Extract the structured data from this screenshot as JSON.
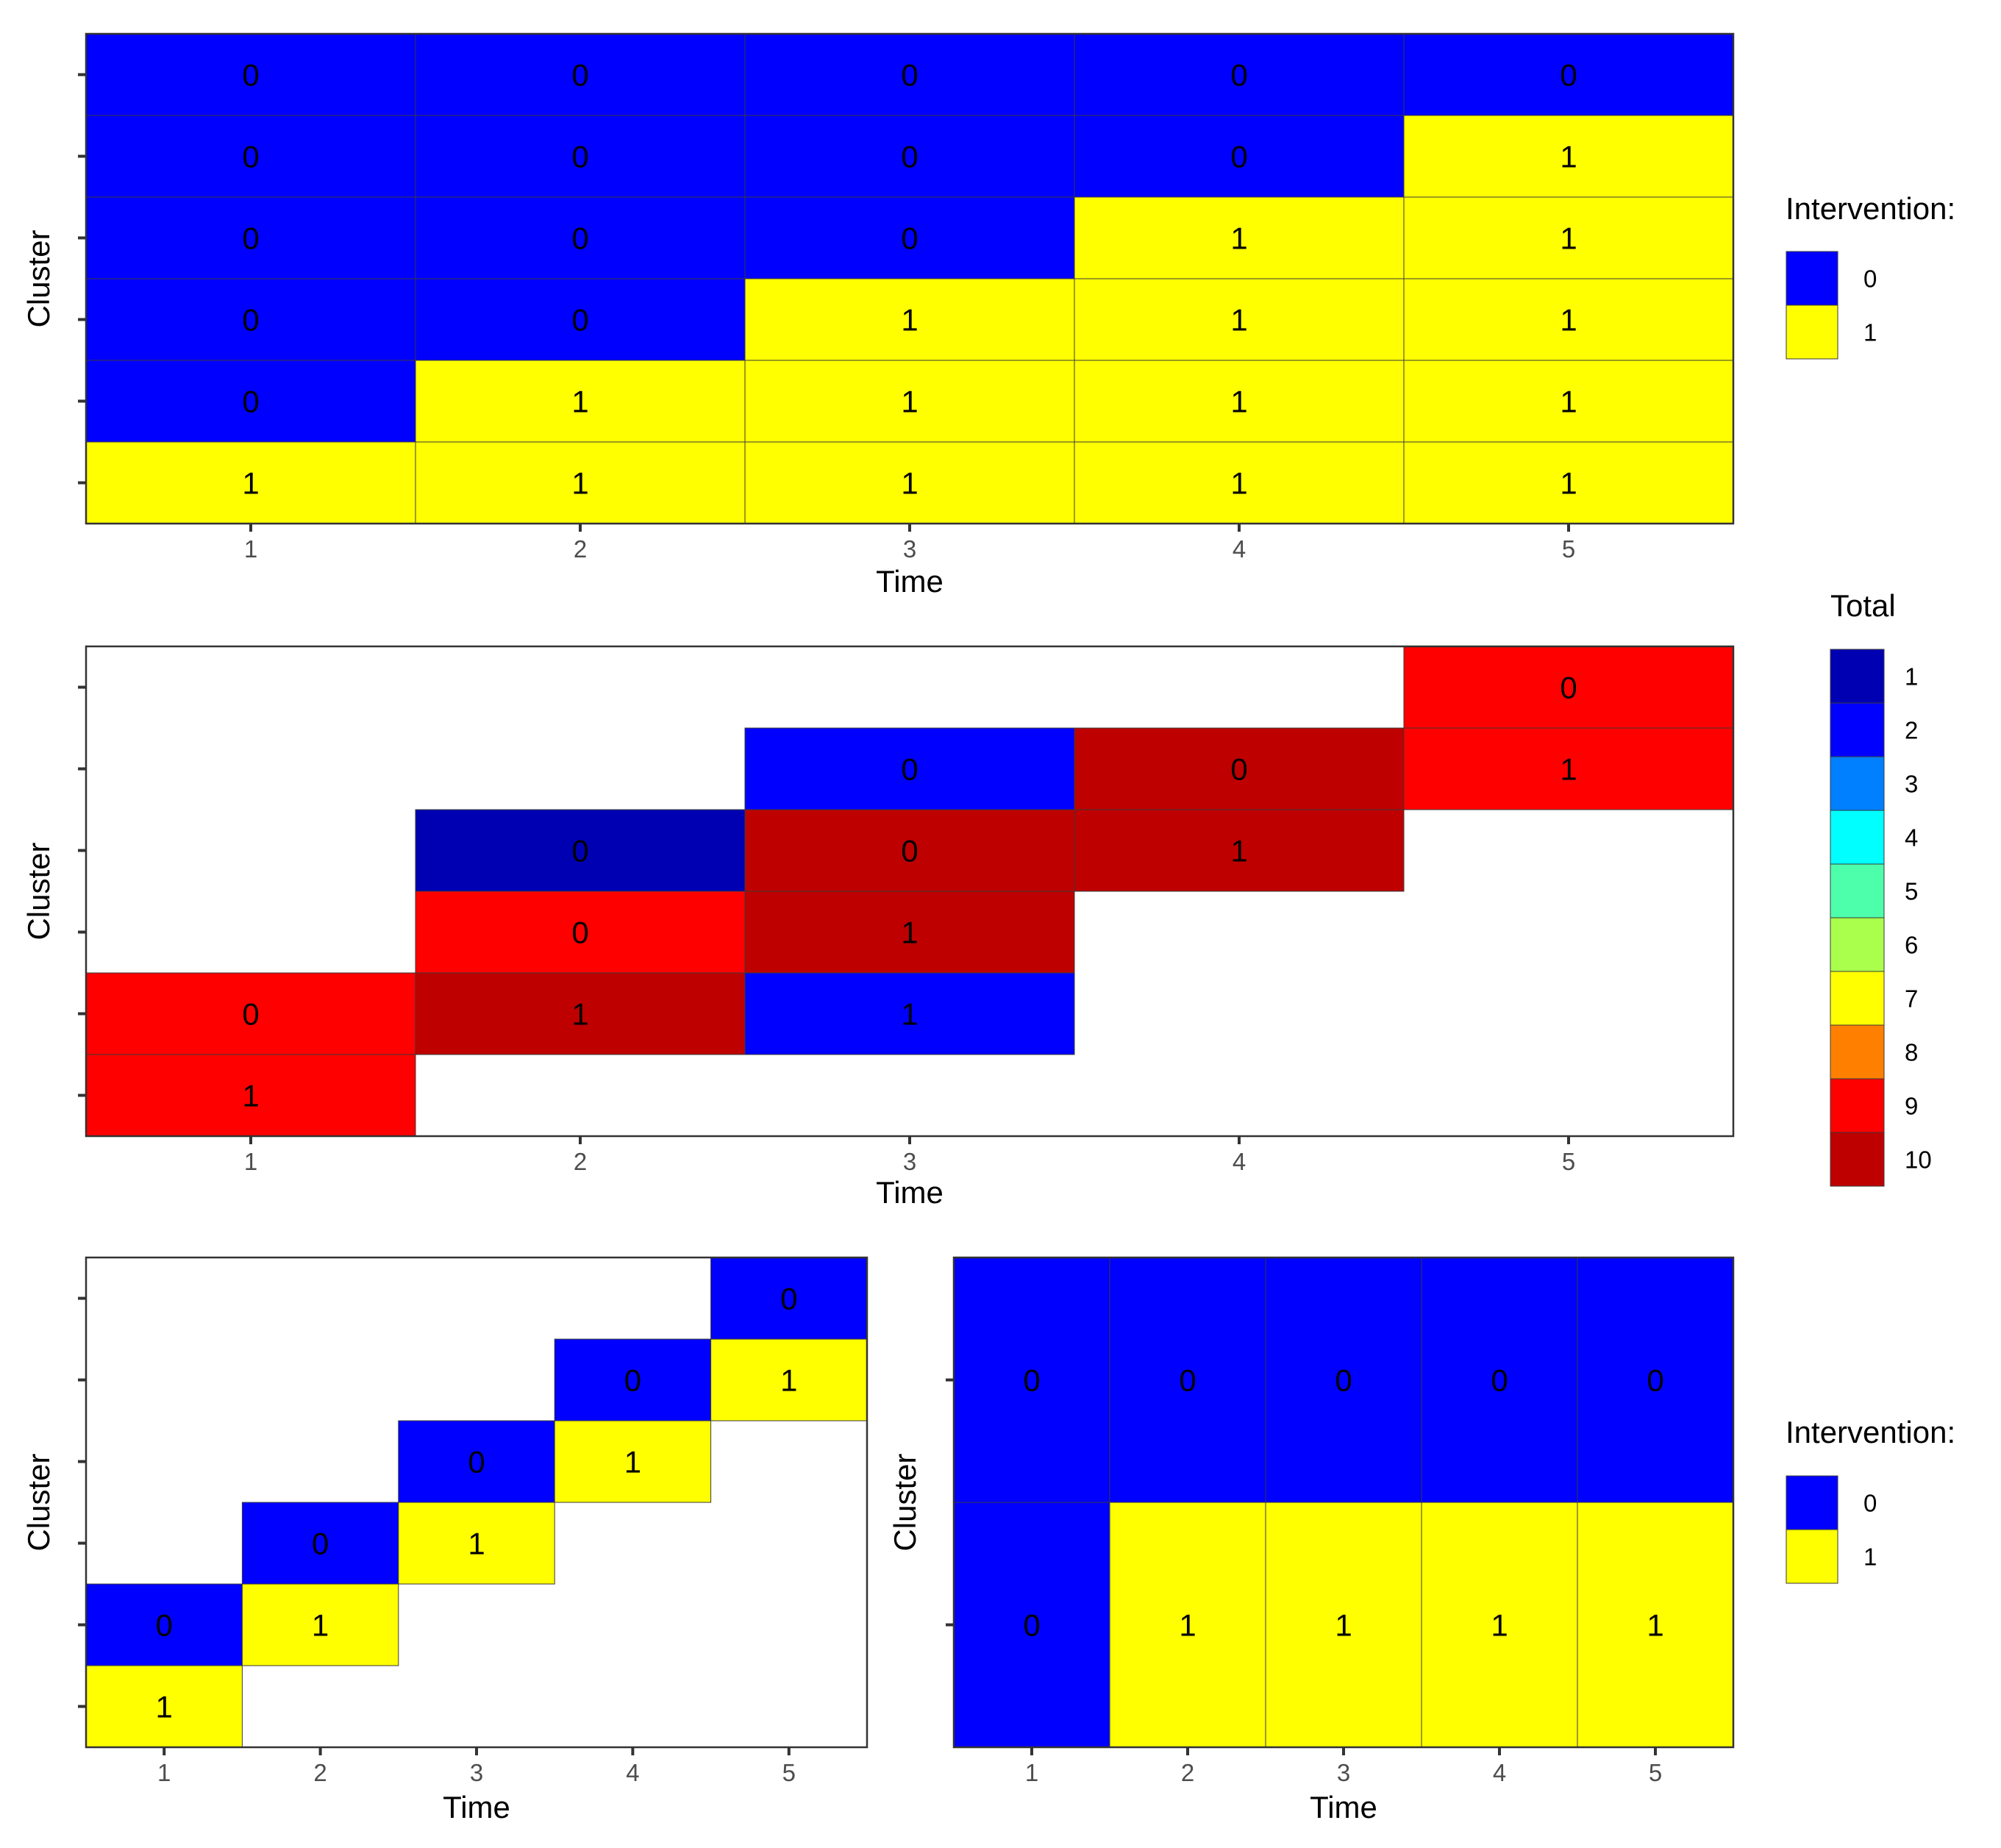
{
  "chart_data": [
    {
      "id": "panel-a",
      "type": "heatmap",
      "xlabel": "Time",
      "ylabel": "Cluster",
      "x_ticks": [
        "1",
        "2",
        "3",
        "4",
        "5"
      ],
      "y_tick_count": 6,
      "legend": {
        "title": "Intervention:",
        "keys": [
          "0",
          "1"
        ],
        "colors": [
          "#0000ff",
          "#ffff00"
        ]
      },
      "rows": [
        {
          "cells": [
            1,
            1,
            1,
            1,
            1
          ]
        },
        {
          "cells": [
            0,
            1,
            1,
            1,
            1
          ]
        },
        {
          "cells": [
            0,
            0,
            1,
            1,
            1
          ]
        },
        {
          "cells": [
            0,
            0,
            0,
            1,
            1
          ]
        },
        {
          "cells": [
            0,
            0,
            0,
            0,
            1
          ]
        },
        {
          "cells": [
            0,
            0,
            0,
            0,
            0
          ]
        }
      ]
    },
    {
      "id": "panel-b",
      "type": "heatmap",
      "xlabel": "Time",
      "ylabel": "Cluster",
      "x_ticks": [
        "1",
        "2",
        "3",
        "4",
        "5"
      ],
      "y_tick_count": 6,
      "legend": {
        "title": "Total",
        "keys": [
          "1",
          "2",
          "3",
          "4",
          "5",
          "6",
          "7",
          "8",
          "9",
          "10"
        ],
        "colors": [
          "#0000b3",
          "#0000ff",
          "#0080ff",
          "#00ffff",
          "#4dffaa",
          "#aaff4d",
          "#ffff00",
          "#ff8000",
          "#ff0000",
          "#bf0000"
        ]
      },
      "rows": [
        {
          "cells": [
            {
              "t": 1,
              "v": 1,
              "total": 9
            }
          ]
        },
        {
          "cells": [
            {
              "t": 1,
              "v": 0,
              "total": 9
            },
            {
              "t": 2,
              "v": 1,
              "total": 10
            },
            {
              "t": 3,
              "v": 1,
              "total": 2
            }
          ]
        },
        {
          "cells": [
            {
              "t": 2,
              "v": 0,
              "total": 9
            },
            {
              "t": 3,
              "v": 1,
              "total": 10
            }
          ]
        },
        {
          "cells": [
            {
              "t": 2,
              "v": 0,
              "total": 1
            },
            {
              "t": 3,
              "v": 0,
              "total": 10
            },
            {
              "t": 4,
              "v": 1,
              "total": 10
            }
          ]
        },
        {
          "cells": [
            {
              "t": 3,
              "v": 0,
              "total": 2
            },
            {
              "t": 4,
              "v": 0,
              "total": 10
            },
            {
              "t": 5,
              "v": 1,
              "total": 9
            }
          ]
        },
        {
          "cells": [
            {
              "t": 5,
              "v": 0,
              "total": 9
            }
          ]
        }
      ]
    },
    {
      "id": "panel-c",
      "type": "heatmap",
      "xlabel": "Time",
      "ylabel": "Cluster",
      "x_ticks": [
        "1",
        "2",
        "3",
        "4",
        "5"
      ],
      "y_tick_count": 6,
      "rows": [
        {
          "cells": [
            {
              "t": 1,
              "v": 1
            }
          ]
        },
        {
          "cells": [
            {
              "t": 1,
              "v": 0
            },
            {
              "t": 2,
              "v": 1
            }
          ]
        },
        {
          "cells": [
            {
              "t": 2,
              "v": 0
            },
            {
              "t": 3,
              "v": 1
            }
          ]
        },
        {
          "cells": [
            {
              "t": 3,
              "v": 0
            },
            {
              "t": 4,
              "v": 1
            }
          ]
        },
        {
          "cells": [
            {
              "t": 4,
              "v": 0
            },
            {
              "t": 5,
              "v": 1
            }
          ]
        },
        {
          "cells": [
            {
              "t": 5,
              "v": 0
            }
          ]
        }
      ]
    },
    {
      "id": "panel-d",
      "type": "heatmap",
      "xlabel": "Time",
      "ylabel": "Cluster",
      "x_ticks": [
        "1",
        "2",
        "3",
        "4",
        "5"
      ],
      "y_tick_count": 2,
      "legend": {
        "title": "Intervention:",
        "keys": [
          "0",
          "1"
        ],
        "colors": [
          "#0000ff",
          "#ffff00"
        ]
      },
      "rows": [
        {
          "cells": [
            0,
            1,
            1,
            1,
            1
          ]
        },
        {
          "cells": [
            0,
            0,
            0,
            0,
            0
          ]
        }
      ]
    }
  ],
  "colors": {
    "intervention_0": "#0000ff",
    "intervention_1": "#ffff00",
    "panel_border": "#333333",
    "tick": "#333333"
  }
}
